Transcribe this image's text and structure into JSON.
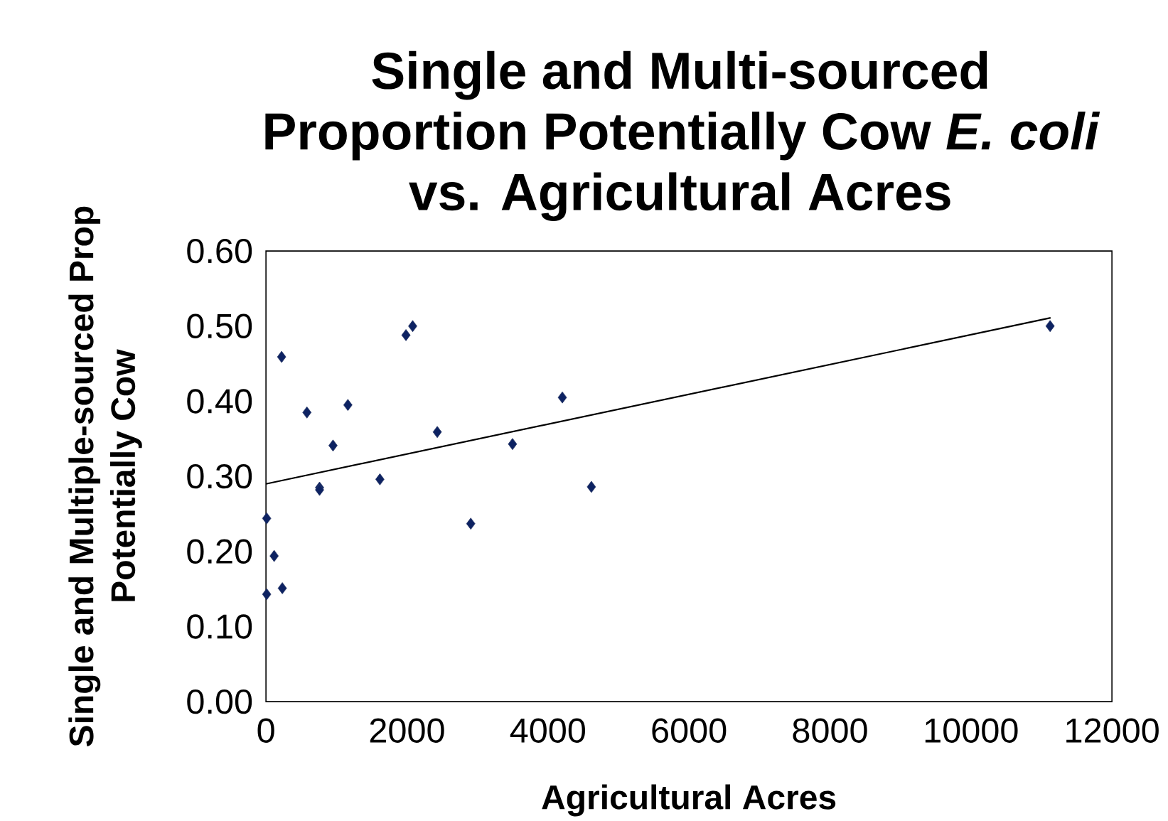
{
  "chart_data": {
    "type": "scatter",
    "title": "Single and Multi-sourced Proportion Potentially Cow *E. coli* vs. Agricultural Acres",
    "xlabel": "Agricultural Acres",
    "ylabel": "Single and Multiple-sourced Prop Potentially Cow",
    "xlim": [
      0,
      12000
    ],
    "xticks": [
      0,
      2000,
      4000,
      6000,
      8000,
      10000,
      12000
    ],
    "ylim": [
      0,
      0.6
    ],
    "yticks": [
      {
        "value": 0,
        "label": "0.00"
      },
      {
        "value": 0.1,
        "label": "0.10"
      },
      {
        "value": 0.2,
        "label": "0.20"
      },
      {
        "value": 0.3,
        "label": "0.30"
      },
      {
        "value": 0.4,
        "label": "0.40"
      },
      {
        "value": 0.5,
        "label": "0.50"
      },
      {
        "value": 0.6,
        "label": "0.60"
      }
    ],
    "grid": false,
    "marker": "diamond",
    "series": [
      {
        "type": "scatter",
        "color": "#0d2262",
        "x": [
          10,
          116,
          10,
          232,
          222,
          581,
          760,
          760,
          951,
          1162,
          1616,
          1986,
          2081,
          2430,
          2905,
          3497,
          4204,
          4616,
          11123
        ],
        "values": [
          0.244,
          0.194,
          0.143,
          0.151,
          0.459,
          0.385,
          0.285,
          0.282,
          0.341,
          0.395,
          0.296,
          0.488,
          0.5,
          0.359,
          0.237,
          0.343,
          0.405,
          0.286,
          0.5
        ]
      },
      {
        "type": "line",
        "color": "#000000",
        "marker": "none",
        "x": [
          0,
          11130
        ],
        "values": [
          0.29,
          0.511
        ]
      }
    ]
  }
}
